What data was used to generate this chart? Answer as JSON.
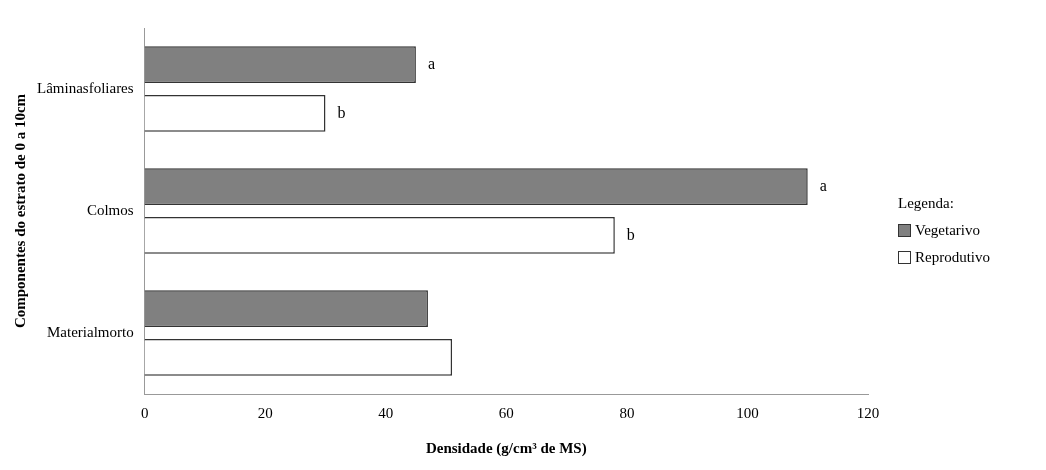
{
  "chart_data": {
    "type": "bar",
    "orientation": "horizontal",
    "xlabel": "Densidade (g/cm³ de MS)",
    "ylabel": "Componentes do estrato de 0 a 10cm",
    "legend_title": "Legenda:",
    "categories": [
      "Lâminasfoliares",
      "Colmos",
      "Materialmorto"
    ],
    "series": [
      {
        "name": "Vegetarivo",
        "color": "#808080",
        "values": [
          45,
          110,
          47
        ]
      },
      {
        "name": "Reprodutivo",
        "color": "#ffffff",
        "values": [
          30,
          78,
          51
        ]
      }
    ],
    "xlim": [
      0,
      120
    ],
    "xticks": [
      0,
      20,
      40,
      60,
      80,
      100,
      120
    ],
    "grid": false,
    "legend": "right",
    "annotations": [
      "a",
      "b",
      "a",
      "b"
    ]
  }
}
